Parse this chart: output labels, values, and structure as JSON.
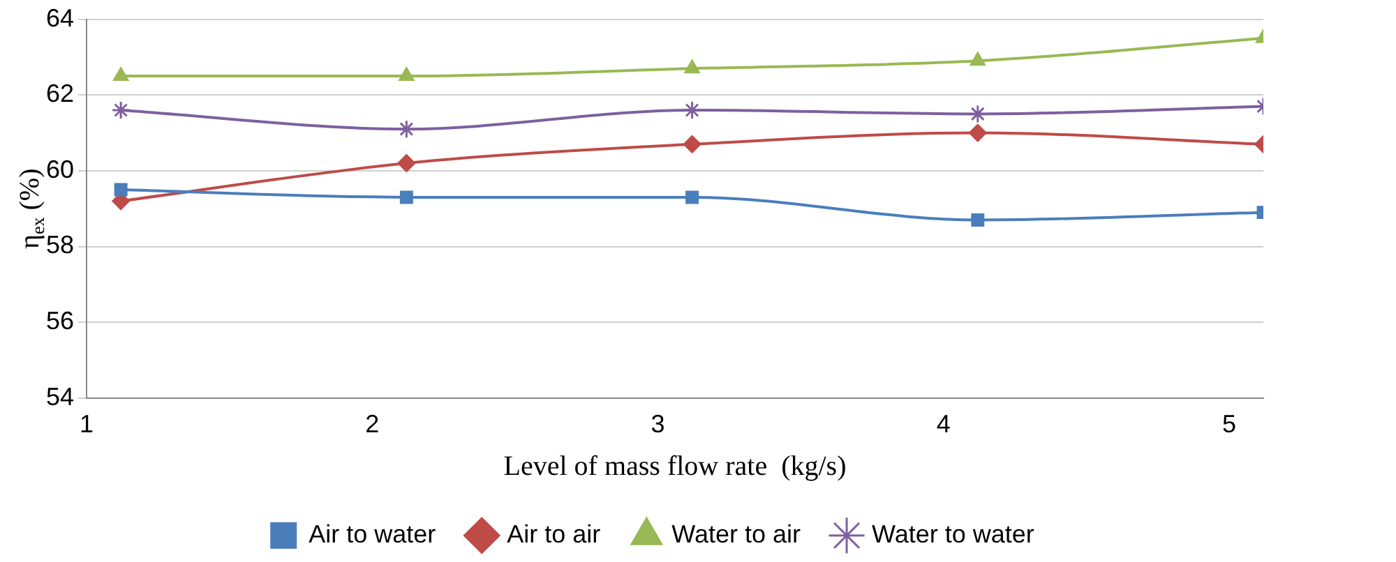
{
  "chart_data": {
    "type": "line",
    "xlabel": "Level of mass flow rate  (kg/s)",
    "ylabel": "η$_{ex}$ (%)",
    "x": [
      1.12,
      2.12,
      3.12,
      4.12,
      5.12
    ],
    "xlim": [
      1,
      5.12
    ],
    "xticks": [
      1,
      2,
      3,
      4,
      5
    ],
    "ylim": [
      54,
      64
    ],
    "yticks": [
      54,
      56,
      58,
      60,
      62,
      64
    ],
    "grid": "y",
    "legend": "bottom",
    "series": [
      {
        "name": "Air to water",
        "color": "#4a7ebb",
        "marker": "square",
        "values": [
          59.5,
          59.3,
          59.3,
          58.7,
          58.9
        ]
      },
      {
        "name": "Air to air",
        "color": "#be4b48",
        "marker": "diamond",
        "values": [
          59.2,
          60.2,
          60.7,
          61.0,
          60.7
        ]
      },
      {
        "name": "Water to air",
        "color": "#98b954",
        "marker": "triangle",
        "values": [
          62.5,
          62.5,
          62.7,
          62.9,
          63.5
        ]
      },
      {
        "name": "Water to water",
        "color": "#7d60a0",
        "marker": "cross",
        "values": [
          61.6,
          61.1,
          61.6,
          61.5,
          61.7
        ]
      }
    ]
  }
}
